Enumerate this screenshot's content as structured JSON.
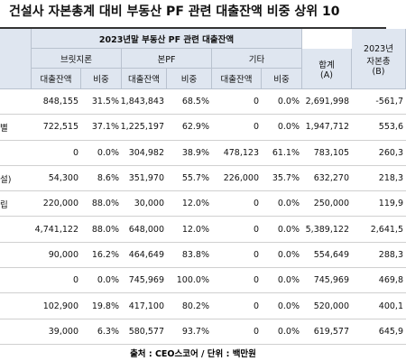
{
  "title": "건설사 자본총계 대비 부동산 PF 관련 대출잔액 비중 상위 10",
  "table": {
    "group_header": "2023년말 부동산 PF 관련 대출잔액",
    "capital_header": [
      "2023년",
      "자본총",
      "(B)"
    ],
    "sub_headers": [
      "브릿지론",
      "본PF",
      "기타"
    ],
    "total_header": [
      "합계",
      "(A)"
    ],
    "column_headers": [
      "대출잔액",
      "비중",
      "대출잔액",
      "비중",
      "대출잔액",
      "비중"
    ],
    "rows": [
      {
        "cells": [
          "848,155",
          "31.5%",
          "1,843,843",
          "68.5%",
          "0",
          "0.0%",
          "2,691,998",
          "-561,7"
        ]
      },
      {
        "name": "별",
        "cells": [
          "722,515",
          "37.1%",
          "1,225,197",
          "62.9%",
          "0",
          "0.0%",
          "1,947,712",
          "553,6"
        ]
      },
      {
        "cells": [
          "0",
          "0.0%",
          "304,982",
          "38.9%",
          "478,123",
          "61.1%",
          "783,105",
          "260,3"
        ]
      },
      {
        "name": "설)",
        "cells": [
          "54,300",
          "8.6%",
          "351,970",
          "55.7%",
          "226,000",
          "35.7%",
          "632,270",
          "218,3"
        ]
      },
      {
        "name": "립",
        "cells": [
          "220,000",
          "88.0%",
          "30,000",
          "12.0%",
          "0",
          "0.0%",
          "250,000",
          "119,9"
        ]
      },
      {
        "cells": [
          "4,741,122",
          "88.0%",
          "648,000",
          "12.0%",
          "0",
          "0.0%",
          "5,389,122",
          "2,641,5"
        ]
      },
      {
        "cells": [
          "90,000",
          "16.2%",
          "464,649",
          "83.8%",
          "0",
          "0.0%",
          "554,649",
          "288,3"
        ]
      },
      {
        "cells": [
          "0",
          "0.0%",
          "745,969",
          "100.0%",
          "0",
          "0.0%",
          "745,969",
          "469,8"
        ]
      },
      {
        "cells": [
          "102,900",
          "19.8%",
          "417,100",
          "80.2%",
          "0",
          "0.0%",
          "520,000",
          "400,1"
        ]
      },
      {
        "cells": [
          "39,000",
          "6.3%",
          "580,577",
          "93.7%",
          "0",
          "0.0%",
          "619,577",
          "645,9"
        ]
      }
    ]
  },
  "footer": "출처 : CEO스코어 / 단위 : 백만원"
}
